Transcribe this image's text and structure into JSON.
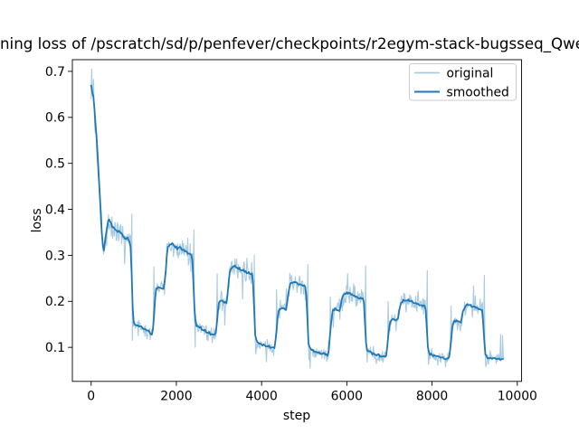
{
  "figure": {
    "background": "#ffffff"
  },
  "chart_data": {
    "type": "line",
    "title": "ning loss of /pscratch/sd/p/penfever/checkpoints/r2egym-stack-bugsseq_Qwe",
    "title_note": "truncated at both image edges",
    "xlabel": "step",
    "ylabel": "loss",
    "xlim": [
      -440,
      10100
    ],
    "ylim": [
      0.026,
      0.7254
    ],
    "xticks": [
      0,
      2000,
      4000,
      6000,
      8000,
      10000
    ],
    "yticks": [
      0.1,
      0.2,
      0.3,
      0.4,
      0.5,
      0.6,
      0.7
    ],
    "grid": false,
    "axis_color": "#000000",
    "legend": {
      "position": "upper right",
      "border_color": "#cccccc",
      "entries": [
        {
          "label": "original",
          "color": "#a8cbe2"
        },
        {
          "label": "smoothed",
          "color": "#1f77b4"
        }
      ]
    },
    "series": [
      {
        "name": "smoothed",
        "color": "#1f77b4",
        "width": 1.8,
        "points": [
          [
            0,
            0.668
          ],
          [
            60,
            0.64
          ],
          [
            130,
            0.555
          ],
          [
            200,
            0.44
          ],
          [
            250,
            0.35
          ],
          [
            290,
            0.306
          ],
          [
            330,
            0.33
          ],
          [
            370,
            0.36
          ],
          [
            410,
            0.38
          ],
          [
            450,
            0.375
          ],
          [
            500,
            0.362
          ],
          [
            560,
            0.357
          ],
          [
            620,
            0.351
          ],
          [
            680,
            0.35
          ],
          [
            730,
            0.347
          ],
          [
            760,
            0.34
          ],
          [
            790,
            0.335
          ],
          [
            840,
            0.338
          ],
          [
            880,
            0.334
          ],
          [
            920,
            0.33
          ],
          [
            948,
            0.27
          ],
          [
            975,
            0.185
          ],
          [
            1005,
            0.152
          ],
          [
            1080,
            0.148
          ],
          [
            1200,
            0.143
          ],
          [
            1320,
            0.136
          ],
          [
            1430,
            0.128
          ],
          [
            1465,
            0.15
          ],
          [
            1495,
            0.2
          ],
          [
            1525,
            0.226
          ],
          [
            1610,
            0.23
          ],
          [
            1700,
            0.226
          ],
          [
            1745,
            0.26
          ],
          [
            1790,
            0.317
          ],
          [
            1860,
            0.326
          ],
          [
            1950,
            0.322
          ],
          [
            2030,
            0.314
          ],
          [
            2100,
            0.317
          ],
          [
            2180,
            0.309
          ],
          [
            2280,
            0.305
          ],
          [
            2370,
            0.3
          ],
          [
            2405,
            0.23
          ],
          [
            2435,
            0.16
          ],
          [
            2470,
            0.147
          ],
          [
            2550,
            0.143
          ],
          [
            2670,
            0.136
          ],
          [
            2800,
            0.129
          ],
          [
            2915,
            0.125
          ],
          [
            2950,
            0.15
          ],
          [
            2985,
            0.19
          ],
          [
            3015,
            0.2
          ],
          [
            3090,
            0.201
          ],
          [
            3175,
            0.196
          ],
          [
            3215,
            0.23
          ],
          [
            3265,
            0.271
          ],
          [
            3340,
            0.277
          ],
          [
            3440,
            0.273
          ],
          [
            3540,
            0.268
          ],
          [
            3660,
            0.263
          ],
          [
            3790,
            0.258
          ],
          [
            3822,
            0.19
          ],
          [
            3852,
            0.123
          ],
          [
            3888,
            0.111
          ],
          [
            3960,
            0.108
          ],
          [
            4080,
            0.104
          ],
          [
            4200,
            0.1
          ],
          [
            4305,
            0.097
          ],
          [
            4345,
            0.13
          ],
          [
            4382,
            0.17
          ],
          [
            4415,
            0.182
          ],
          [
            4490,
            0.185
          ],
          [
            4575,
            0.181
          ],
          [
            4615,
            0.21
          ],
          [
            4665,
            0.237
          ],
          [
            4740,
            0.242
          ],
          [
            4840,
            0.239
          ],
          [
            4940,
            0.235
          ],
          [
            5040,
            0.232
          ],
          [
            5072,
            0.17
          ],
          [
            5102,
            0.103
          ],
          [
            5138,
            0.096
          ],
          [
            5215,
            0.093
          ],
          [
            5335,
            0.089
          ],
          [
            5455,
            0.086
          ],
          [
            5565,
            0.084
          ],
          [
            5602,
            0.12
          ],
          [
            5638,
            0.162
          ],
          [
            5672,
            0.181
          ],
          [
            5750,
            0.184
          ],
          [
            5835,
            0.18
          ],
          [
            5875,
            0.203
          ],
          [
            5925,
            0.215
          ],
          [
            5995,
            0.219
          ],
          [
            6095,
            0.217
          ],
          [
            6195,
            0.212
          ],
          [
            6295,
            0.208
          ],
          [
            6395,
            0.205
          ],
          [
            6428,
            0.15
          ],
          [
            6458,
            0.098
          ],
          [
            6495,
            0.09
          ],
          [
            6570,
            0.088
          ],
          [
            6690,
            0.084
          ],
          [
            6810,
            0.081
          ],
          [
            6920,
            0.079
          ],
          [
            6958,
            0.11
          ],
          [
            6995,
            0.148
          ],
          [
            7030,
            0.159
          ],
          [
            7110,
            0.161
          ],
          [
            7192,
            0.157
          ],
          [
            7232,
            0.183
          ],
          [
            7282,
            0.199
          ],
          [
            7355,
            0.204
          ],
          [
            7455,
            0.202
          ],
          [
            7575,
            0.197
          ],
          [
            7705,
            0.192
          ],
          [
            7845,
            0.188
          ],
          [
            7878,
            0.14
          ],
          [
            7908,
            0.092
          ],
          [
            7945,
            0.085
          ],
          [
            8020,
            0.083
          ],
          [
            8140,
            0.08
          ],
          [
            8260,
            0.077
          ],
          [
            8398,
            0.0755
          ],
          [
            8438,
            0.105
          ],
          [
            8475,
            0.143
          ],
          [
            8508,
            0.156
          ],
          [
            8590,
            0.158
          ],
          [
            8678,
            0.154
          ],
          [
            8718,
            0.178
          ],
          [
            8768,
            0.189
          ],
          [
            8840,
            0.192
          ],
          [
            8950,
            0.189
          ],
          [
            9070,
            0.185
          ],
          [
            9180,
            0.182
          ],
          [
            9215,
            0.13
          ],
          [
            9245,
            0.088
          ],
          [
            9282,
            0.079
          ],
          [
            9360,
            0.077
          ],
          [
            9480,
            0.0755
          ],
          [
            9600,
            0.075
          ],
          [
            9680,
            0.076
          ]
        ]
      }
    ],
    "original": {
      "name": "original",
      "color": "#a8cbe2",
      "width": 1.1,
      "derived_from": "smoothed",
      "seed": 12,
      "sample_step": 14,
      "end_step": 9690,
      "noise_base": 0.008,
      "noise_scale": 0.055,
      "spikes": [
        [
          14,
          0.705
        ],
        [
          955,
          0.39
        ],
        [
          968,
          0.115
        ],
        [
          1475,
          0.275
        ],
        [
          2412,
          0.355
        ],
        [
          2442,
          0.1
        ],
        [
          2958,
          0.26
        ],
        [
          3830,
          0.3
        ],
        [
          3862,
          0.085
        ],
        [
          4352,
          0.225
        ],
        [
          5085,
          0.28
        ],
        [
          5112,
          0.073
        ],
        [
          5612,
          0.21
        ],
        [
          6442,
          0.277
        ],
        [
          6475,
          0.068
        ],
        [
          6968,
          0.2
        ],
        [
          7888,
          0.267
        ],
        [
          7918,
          0.063
        ],
        [
          8448,
          0.19
        ],
        [
          9228,
          0.257
        ],
        [
          9262,
          0.058
        ],
        [
          9610,
          0.128
        ],
        [
          9655,
          0.125
        ]
      ]
    },
    "smoothed_jitter": 0.0032
  }
}
